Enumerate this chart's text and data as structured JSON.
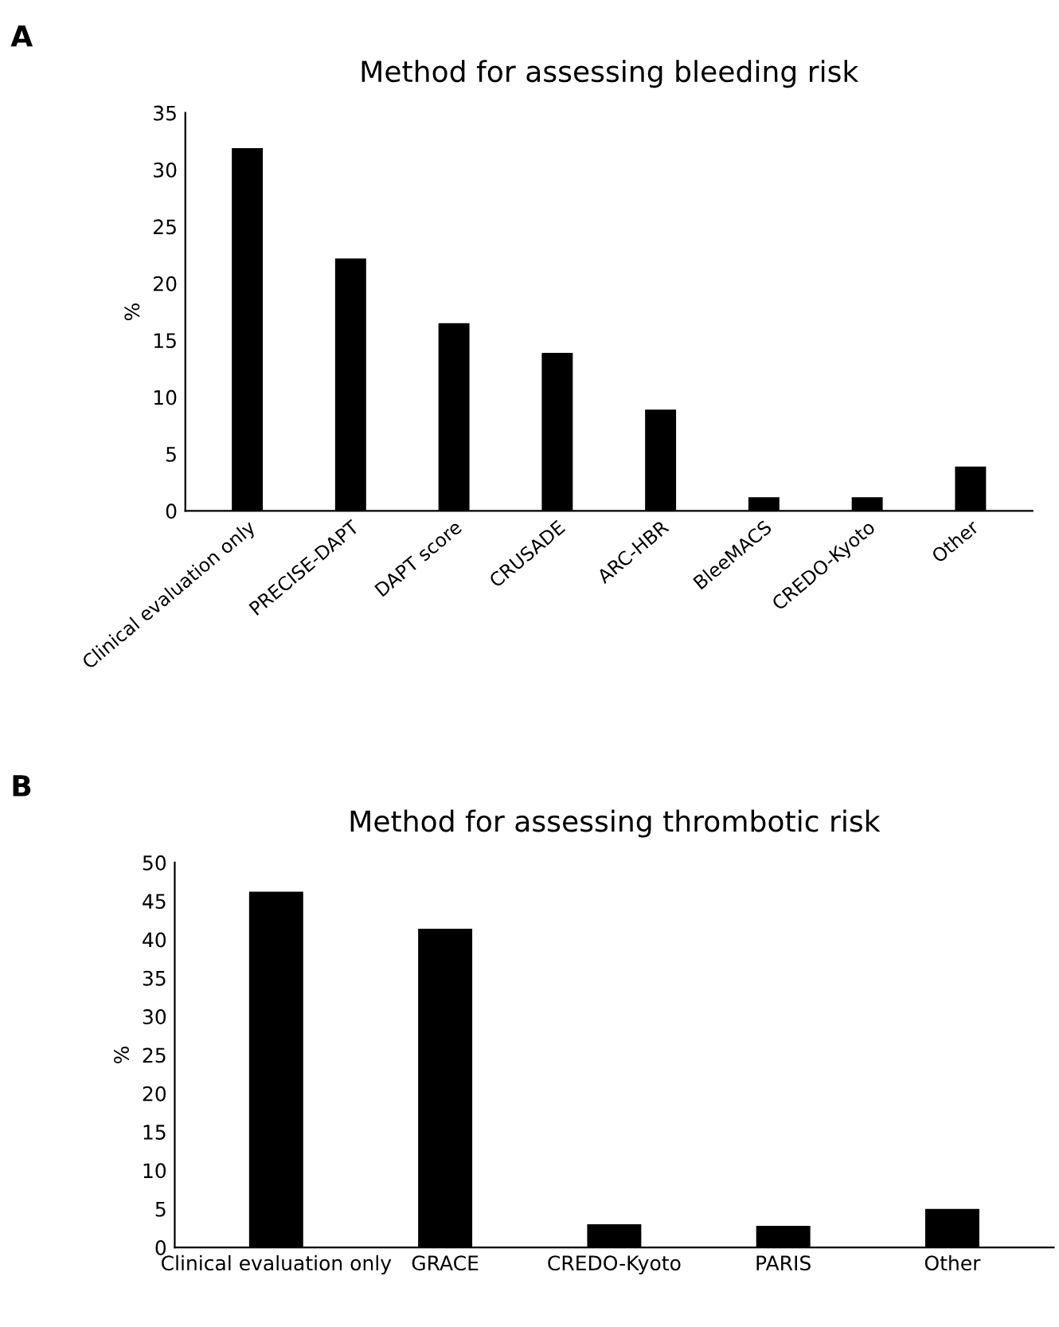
{
  "chart_data": [
    {
      "type": "bar",
      "title": "Method for assessing bleeding risk",
      "ylabel": "%",
      "annotations": [
        "A"
      ],
      "categories": [
        "Clinical evaluation only",
        "PRECISE-DAPT",
        "DAPT score",
        "CRUSADE",
        "ARC-HBR",
        "BleeMACS",
        "CREDO-Kyoto",
        "Other"
      ],
      "values": [
        31.9,
        22.2,
        16.5,
        13.9,
        8.9,
        1.2,
        1.2,
        3.9
      ],
      "color": "#000000",
      "ylim": [
        0,
        35
      ],
      "yticks": [
        0,
        5,
        10,
        15,
        20,
        25,
        30,
        35
      ],
      "grid": false
    },
    {
      "type": "bar",
      "title": "Method for assessing thrombotic risk",
      "ylabel": "%",
      "annotations": [
        "B"
      ],
      "categories": [
        "Clinical evaluation only",
        "GRACE",
        "CREDO-Kyoto",
        "PARIS",
        "Other"
      ],
      "values": [
        46.2,
        41.4,
        3.0,
        2.8,
        5.0
      ],
      "color": "#000000",
      "ylim": [
        0,
        50
      ],
      "yticks": [
        0,
        5,
        10,
        15,
        20,
        25,
        30,
        35,
        40,
        45,
        50
      ],
      "grid": false
    }
  ]
}
